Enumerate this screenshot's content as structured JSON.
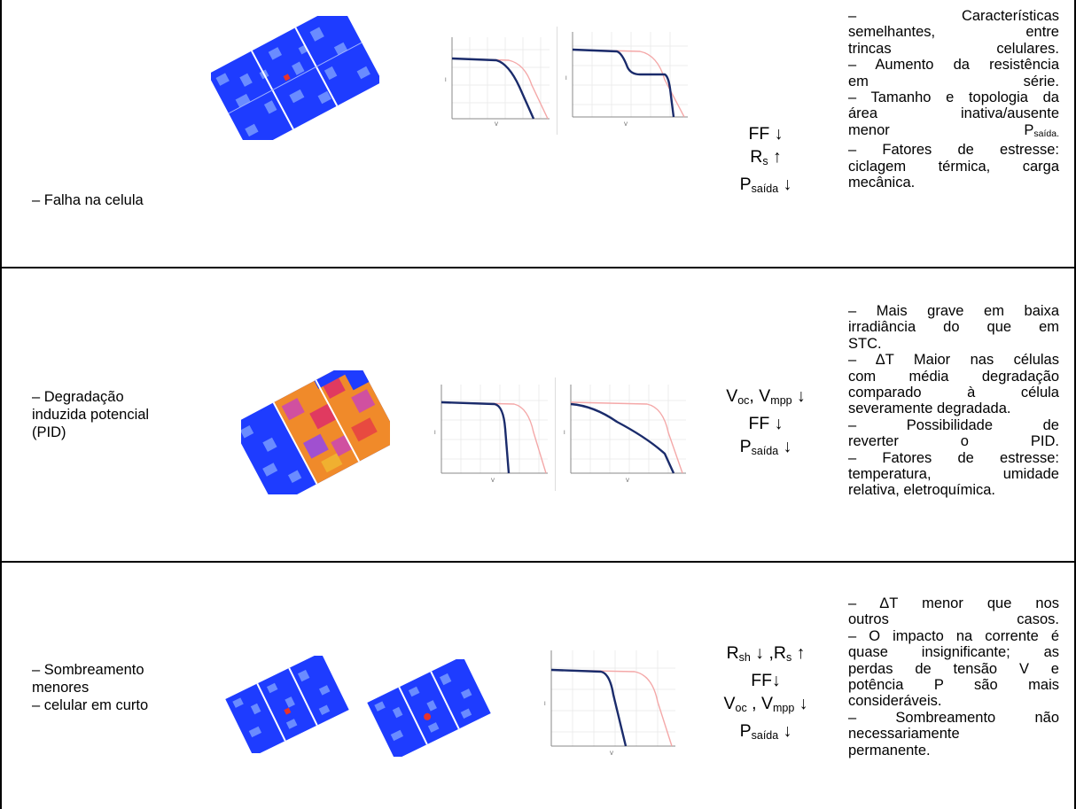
{
  "colors": {
    "module_blue": "#1e3cff",
    "module_light": "#6a8cff",
    "hotspot": "#e8322a",
    "curve_dark": "#1a2b6b",
    "curve_ref": "#f4a8a8",
    "grid": "#e6e6e6"
  },
  "rows": [
    {
      "label_lines": [
        "– Falha na celula"
      ],
      "chart_labels": {
        "x": "V",
        "y": "I"
      },
      "params": [
        {
          "main": "FF",
          "sub": "",
          "tail": " ↓"
        },
        {
          "main": "R",
          "sub": "s",
          "tail": " ↑"
        },
        {
          "main": "P",
          "sub": "saída",
          "tail": " ↓"
        }
      ],
      "desc_lines": [
        "– Características",
        "semelhantes, entre",
        "trincas celulares.",
        "– Aumento da resistência",
        "em série.",
        "– Tamanho e topologia da",
        "área inativa/ausente"
      ],
      "desc_menor": "menor",
      "desc_p_main": "P",
      "desc_p_sub": "saída.",
      "desc_tail": [
        "– Fatores de estresse:",
        "ciclagem térmica, carga",
        "mecânica."
      ]
    },
    {
      "label_lines": [
        "– Degradação",
        "induzida potencial",
        "(PID)"
      ],
      "chart_labels": {
        "x": "V",
        "y": "I"
      },
      "params_line1": {
        "a": "V",
        "a_sub": "oc",
        "sep": ", ",
        "b": "V",
        "b_sub": "mpp",
        "tail": " ↓"
      },
      "params": [
        {
          "main": "FF",
          "sub": "",
          "tail": " ↓"
        },
        {
          "main": "P",
          "sub": "saída",
          "tail": " ↓"
        }
      ],
      "desc_lines": [
        "– Mais grave em baixa",
        "irradiância do que em",
        "STC.",
        "– ΔT Maior nas células",
        "com média degradação",
        "comparado à célula",
        "severamente degradada.",
        "– Possibilidade de",
        "reverter o PID.",
        "– Fatores de estresse:",
        "temperatura, umidade",
        "relativa, eletroquímica."
      ]
    },
    {
      "label_lines": [
        "– Sombreamento",
        "menores",
        "– celular em curto"
      ],
      "chart_labels": {
        "x": "V",
        "y": "I"
      },
      "params_line0": {
        "a": "R",
        "a_sub": "sh",
        "a_tail": " ↓ ,",
        "b": "R",
        "b_sub": "s",
        "tail": " ↑"
      },
      "params_ff": {
        "main": "FF",
        "tail": "↓"
      },
      "params_line1": {
        "a": "V",
        "a_sub": "oc",
        "sep": " , ",
        "b": "V",
        "b_sub": "mpp",
        "tail": " ↓"
      },
      "params": [
        {
          "main": "P",
          "sub": "saída",
          "tail": " ↓"
        }
      ],
      "desc_lines": [
        "– ΔT menor que nos",
        "outros casos.",
        "– O impacto na corrente é",
        "quase insignificante; as",
        "perdas de tensão V e",
        "potência P são mais",
        "consideráveis.",
        "– Sombreamento não",
        "necessariamente",
        "permanente."
      ]
    }
  ]
}
